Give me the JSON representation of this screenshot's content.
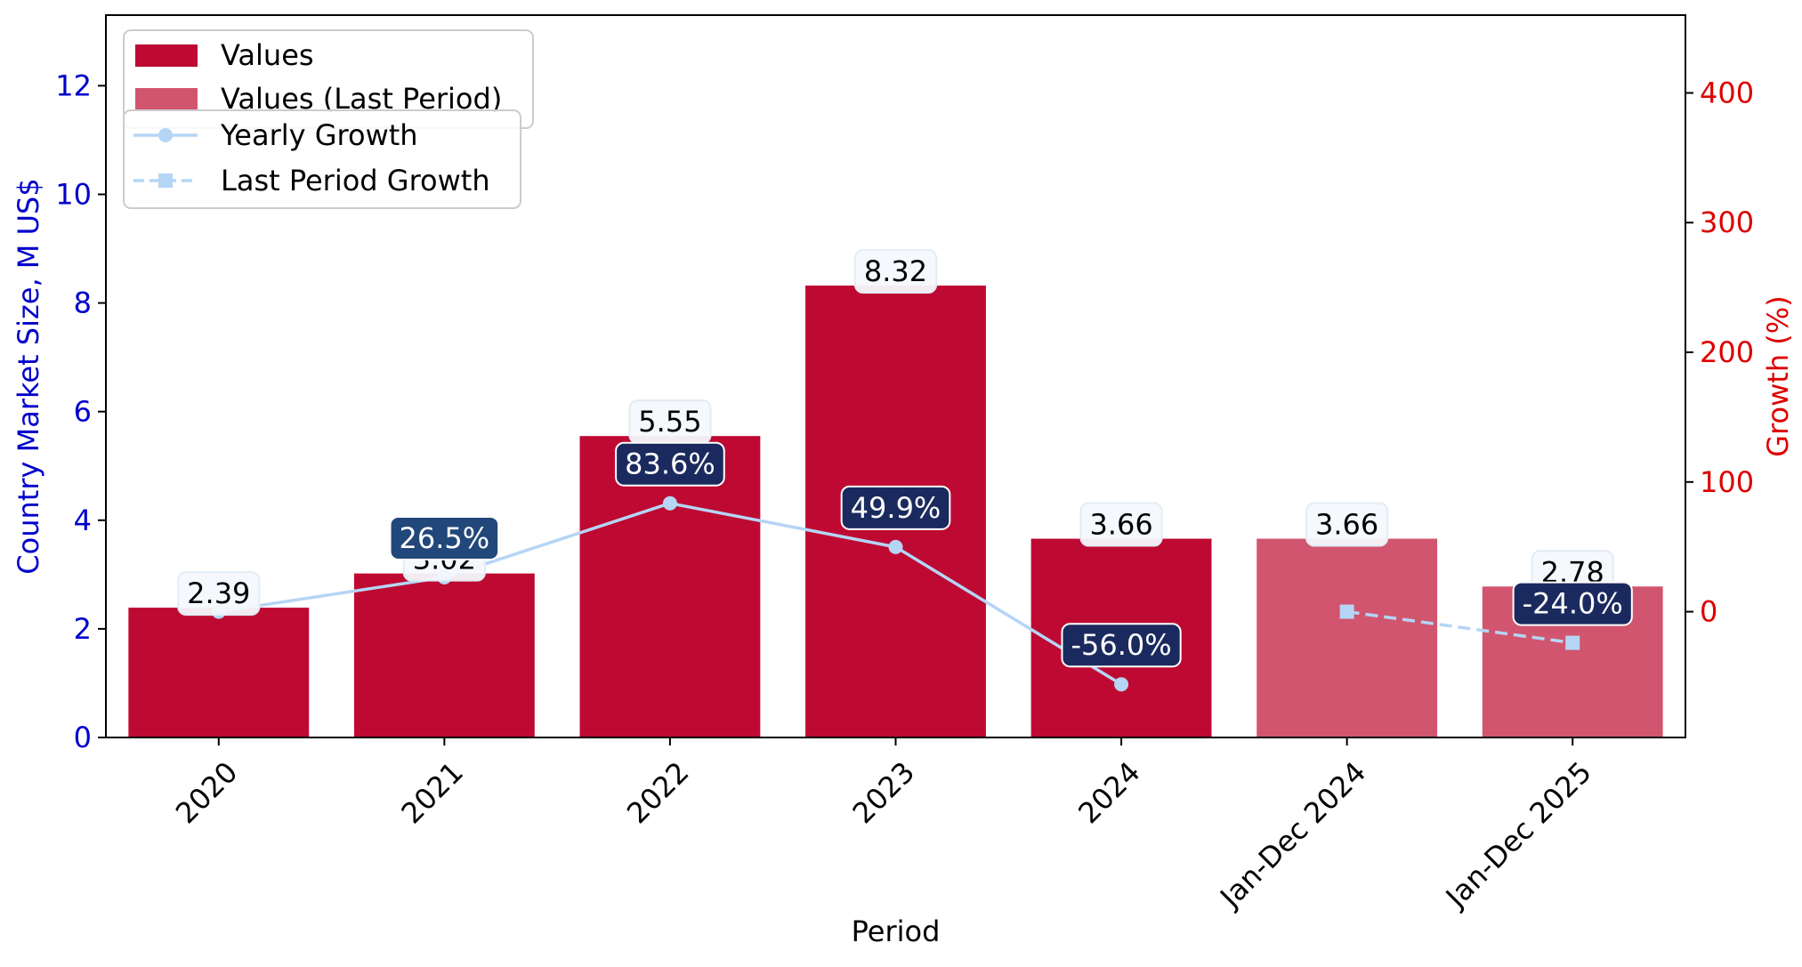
{
  "chart_data": {
    "type": "bar",
    "categories": [
      "2020",
      "2021",
      "2022",
      "2023",
      "2024",
      "Jan-Dec 2024",
      "Jan-Dec 2025"
    ],
    "series": [
      {
        "name": "Values",
        "kind": "bar",
        "axis": "left",
        "color": "#be0a32",
        "values": [
          2.39,
          3.02,
          5.55,
          8.32,
          3.66,
          null,
          null
        ]
      },
      {
        "name": "Values (Last Period)",
        "kind": "bar",
        "axis": "left",
        "color": "#d1556e",
        "values": [
          null,
          null,
          null,
          null,
          null,
          3.66,
          2.78
        ]
      },
      {
        "name": "Yearly Growth",
        "kind": "line",
        "axis": "right",
        "color": "#b5d5f5",
        "marker": "circle",
        "dash": "solid",
        "values": [
          0.0,
          26.5,
          83.6,
          49.9,
          -56.0,
          null,
          null
        ]
      },
      {
        "name": "Last Period Growth",
        "kind": "line",
        "axis": "right",
        "color": "#b5d5f5",
        "marker": "square",
        "dash": "dashed",
        "values": [
          null,
          null,
          null,
          null,
          null,
          0.0,
          -24.0
        ]
      }
    ],
    "bar_labels": [
      "2.39",
      "3.02",
      "5.55",
      "8.32",
      "3.66",
      "3.66",
      "2.78"
    ],
    "growth_labels": [
      null,
      "26.5%",
      "83.6%",
      "49.9%",
      "-56.0%",
      null,
      "-24.0%"
    ],
    "xlabel": "Period",
    "ylabel_left": "Country Market Size, M US$",
    "ylabel_right": "Growth (%)",
    "ylim_left": [
      0,
      13.3
    ],
    "ylim_right": [
      -97,
      460
    ],
    "yticks_left": [
      0,
      2,
      4,
      6,
      8,
      10,
      12
    ],
    "yticks_right": [
      0,
      100,
      200,
      300,
      400
    ],
    "left_axis_color": "#0000cc",
    "right_axis_color": "#dd0000",
    "grid": false,
    "legend_placement": "top-left"
  }
}
